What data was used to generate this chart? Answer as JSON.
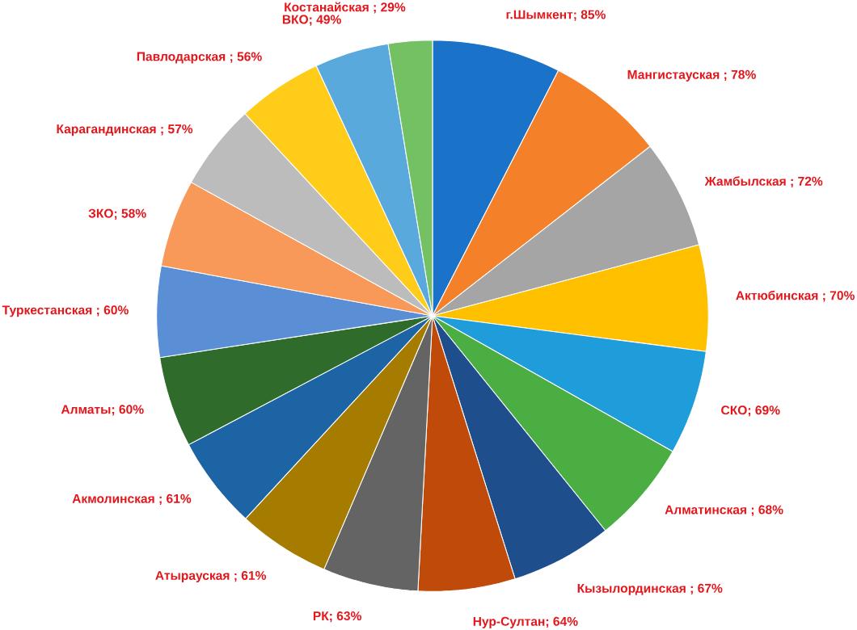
{
  "chart_data": {
    "type": "pie",
    "categories": [
      "г.Шымкент",
      "Мангистауская",
      "Жамбылская",
      "Актюбинская",
      "СКО",
      "Алматинская",
      "Кызылординская",
      "Нур-Султан",
      "РК",
      "Атырауская",
      "Акмолинская",
      "Алматы",
      "Туркестанская",
      "ЗКО",
      "Карагандинская",
      "Павлодарская",
      "ВКО",
      "Костанайская"
    ],
    "values": [
      85,
      78,
      72,
      70,
      69,
      68,
      67,
      64,
      63,
      61,
      61,
      60,
      60,
      58,
      57,
      56,
      49,
      29
    ],
    "value_labels": [
      "; 85%",
      " ; 78%",
      " ; 72%",
      " ; 70%",
      "; 69%",
      " ; 68%",
      " ; 67%",
      "; 64%",
      "; 63%",
      " ; 61%",
      " ; 61%",
      "; 60%",
      " ; 60%",
      "; 58%",
      " ; 57%",
      " ; 56%",
      "; 49%",
      " ; 29%"
    ],
    "colors": [
      "#1a73c8",
      "#f5802a",
      "#a5a5a5",
      "#ffc000",
      "#1f9ddb",
      "#4aae43",
      "#1f4e8c",
      "#c04a0a",
      "#646464",
      "#a67c00",
      "#1c64a3",
      "#2f6b2a",
      "#5a8fd6",
      "#f8995a",
      "#bcbcbc",
      "#ffcc1a",
      "#5aa9dd",
      "#73c163"
    ]
  }
}
